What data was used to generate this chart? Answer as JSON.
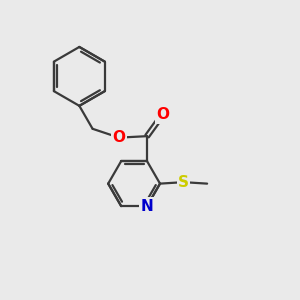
{
  "bg_color": "#eaeaea",
  "bond_color": "#3a3a3a",
  "bond_width": 1.6,
  "O_color": "#ff0000",
  "N_color": "#0000cc",
  "S_color": "#cccc00",
  "font_size": 11,
  "fig_width": 3.0,
  "fig_height": 3.0,
  "dpi": 100,
  "xlim": [
    0,
    10
  ],
  "ylim": [
    0,
    10
  ]
}
